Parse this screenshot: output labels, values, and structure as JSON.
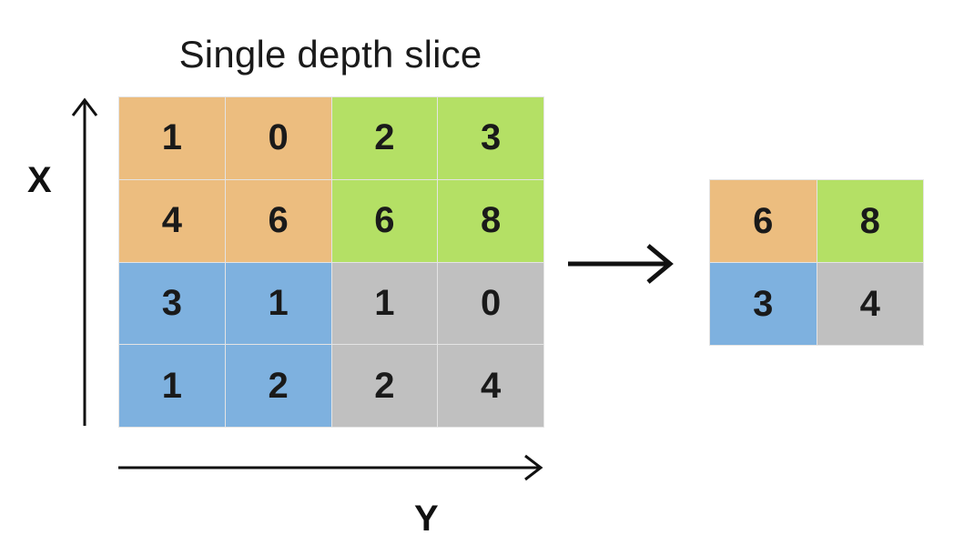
{
  "title": "Single depth slice",
  "axes": {
    "x_label": "X",
    "y_label": "Y"
  },
  "colors": {
    "orange": "#ecbd7f",
    "green": "#b4e065",
    "blue": "#7eb1df",
    "gray": "#c0c0c0"
  },
  "input_grid": [
    [
      {
        "value": "1",
        "color": "orange"
      },
      {
        "value": "0",
        "color": "orange"
      },
      {
        "value": "2",
        "color": "green"
      },
      {
        "value": "3",
        "color": "green"
      }
    ],
    [
      {
        "value": "4",
        "color": "orange"
      },
      {
        "value": "6",
        "color": "orange"
      },
      {
        "value": "6",
        "color": "green"
      },
      {
        "value": "8",
        "color": "green"
      }
    ],
    [
      {
        "value": "3",
        "color": "blue"
      },
      {
        "value": "1",
        "color": "blue"
      },
      {
        "value": "1",
        "color": "gray"
      },
      {
        "value": "0",
        "color": "gray"
      }
    ],
    [
      {
        "value": "1",
        "color": "blue"
      },
      {
        "value": "2",
        "color": "blue"
      },
      {
        "value": "2",
        "color": "gray"
      },
      {
        "value": "4",
        "color": "gray"
      }
    ]
  ],
  "output_grid": [
    [
      {
        "value": "6",
        "color": "orange"
      },
      {
        "value": "8",
        "color": "green"
      }
    ],
    [
      {
        "value": "3",
        "color": "blue"
      },
      {
        "value": "4",
        "color": "gray"
      }
    ]
  ]
}
